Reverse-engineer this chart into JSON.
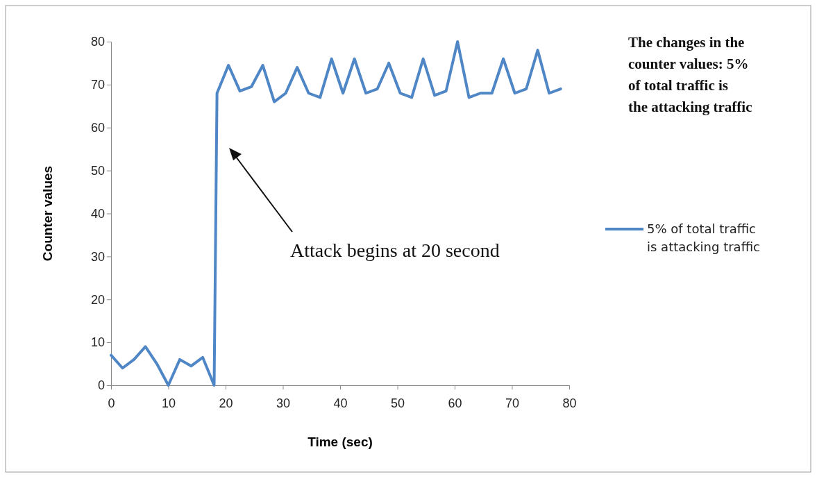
{
  "chart_data": {
    "type": "line",
    "title": "The changes in the counter values: 5% of total traffic is the attacking traffic",
    "xlabel": "Time (sec)",
    "ylabel": "Counter values",
    "x": [
      0,
      2,
      4,
      6,
      8,
      10,
      12,
      14,
      16,
      18,
      18.5,
      20.5,
      22.5,
      24.5,
      26.5,
      28.5,
      30.5,
      32.5,
      34.5,
      36.5,
      38.5,
      40.5,
      42.5,
      44.5,
      46.5,
      48.5,
      50.5,
      52.5,
      54.5,
      56.5,
      58.5,
      60.5,
      62.5,
      64.5,
      66.5,
      68.5,
      70.5,
      72.5,
      74.5,
      76.5,
      78.5
    ],
    "series": [
      {
        "name": "5% of total traffic is attacking traffic",
        "color": "#4f86c6",
        "values": [
          7,
          4,
          6,
          9,
          5,
          0,
          6,
          4.5,
          6.5,
          0,
          68,
          74.5,
          68.5,
          69.5,
          74.5,
          66,
          68,
          74,
          68,
          67,
          76,
          68,
          76,
          68,
          69,
          75,
          68,
          67,
          76,
          67.5,
          68.5,
          80,
          67,
          68,
          68,
          76,
          68,
          69,
          78,
          68,
          69
        ]
      }
    ],
    "xlim": [
      0,
      80
    ],
    "xticks": [
      0,
      10,
      20,
      30,
      40,
      50,
      60,
      70,
      80
    ],
    "ylim": [
      0,
      80
    ],
    "yticks": [
      0,
      10,
      20,
      30,
      40,
      50,
      60,
      70,
      80
    ],
    "annotations": [
      "Attack begins at 20 second"
    ],
    "legend": "right",
    "grid": false,
    "marker": "none",
    "line_style": "solid"
  }
}
